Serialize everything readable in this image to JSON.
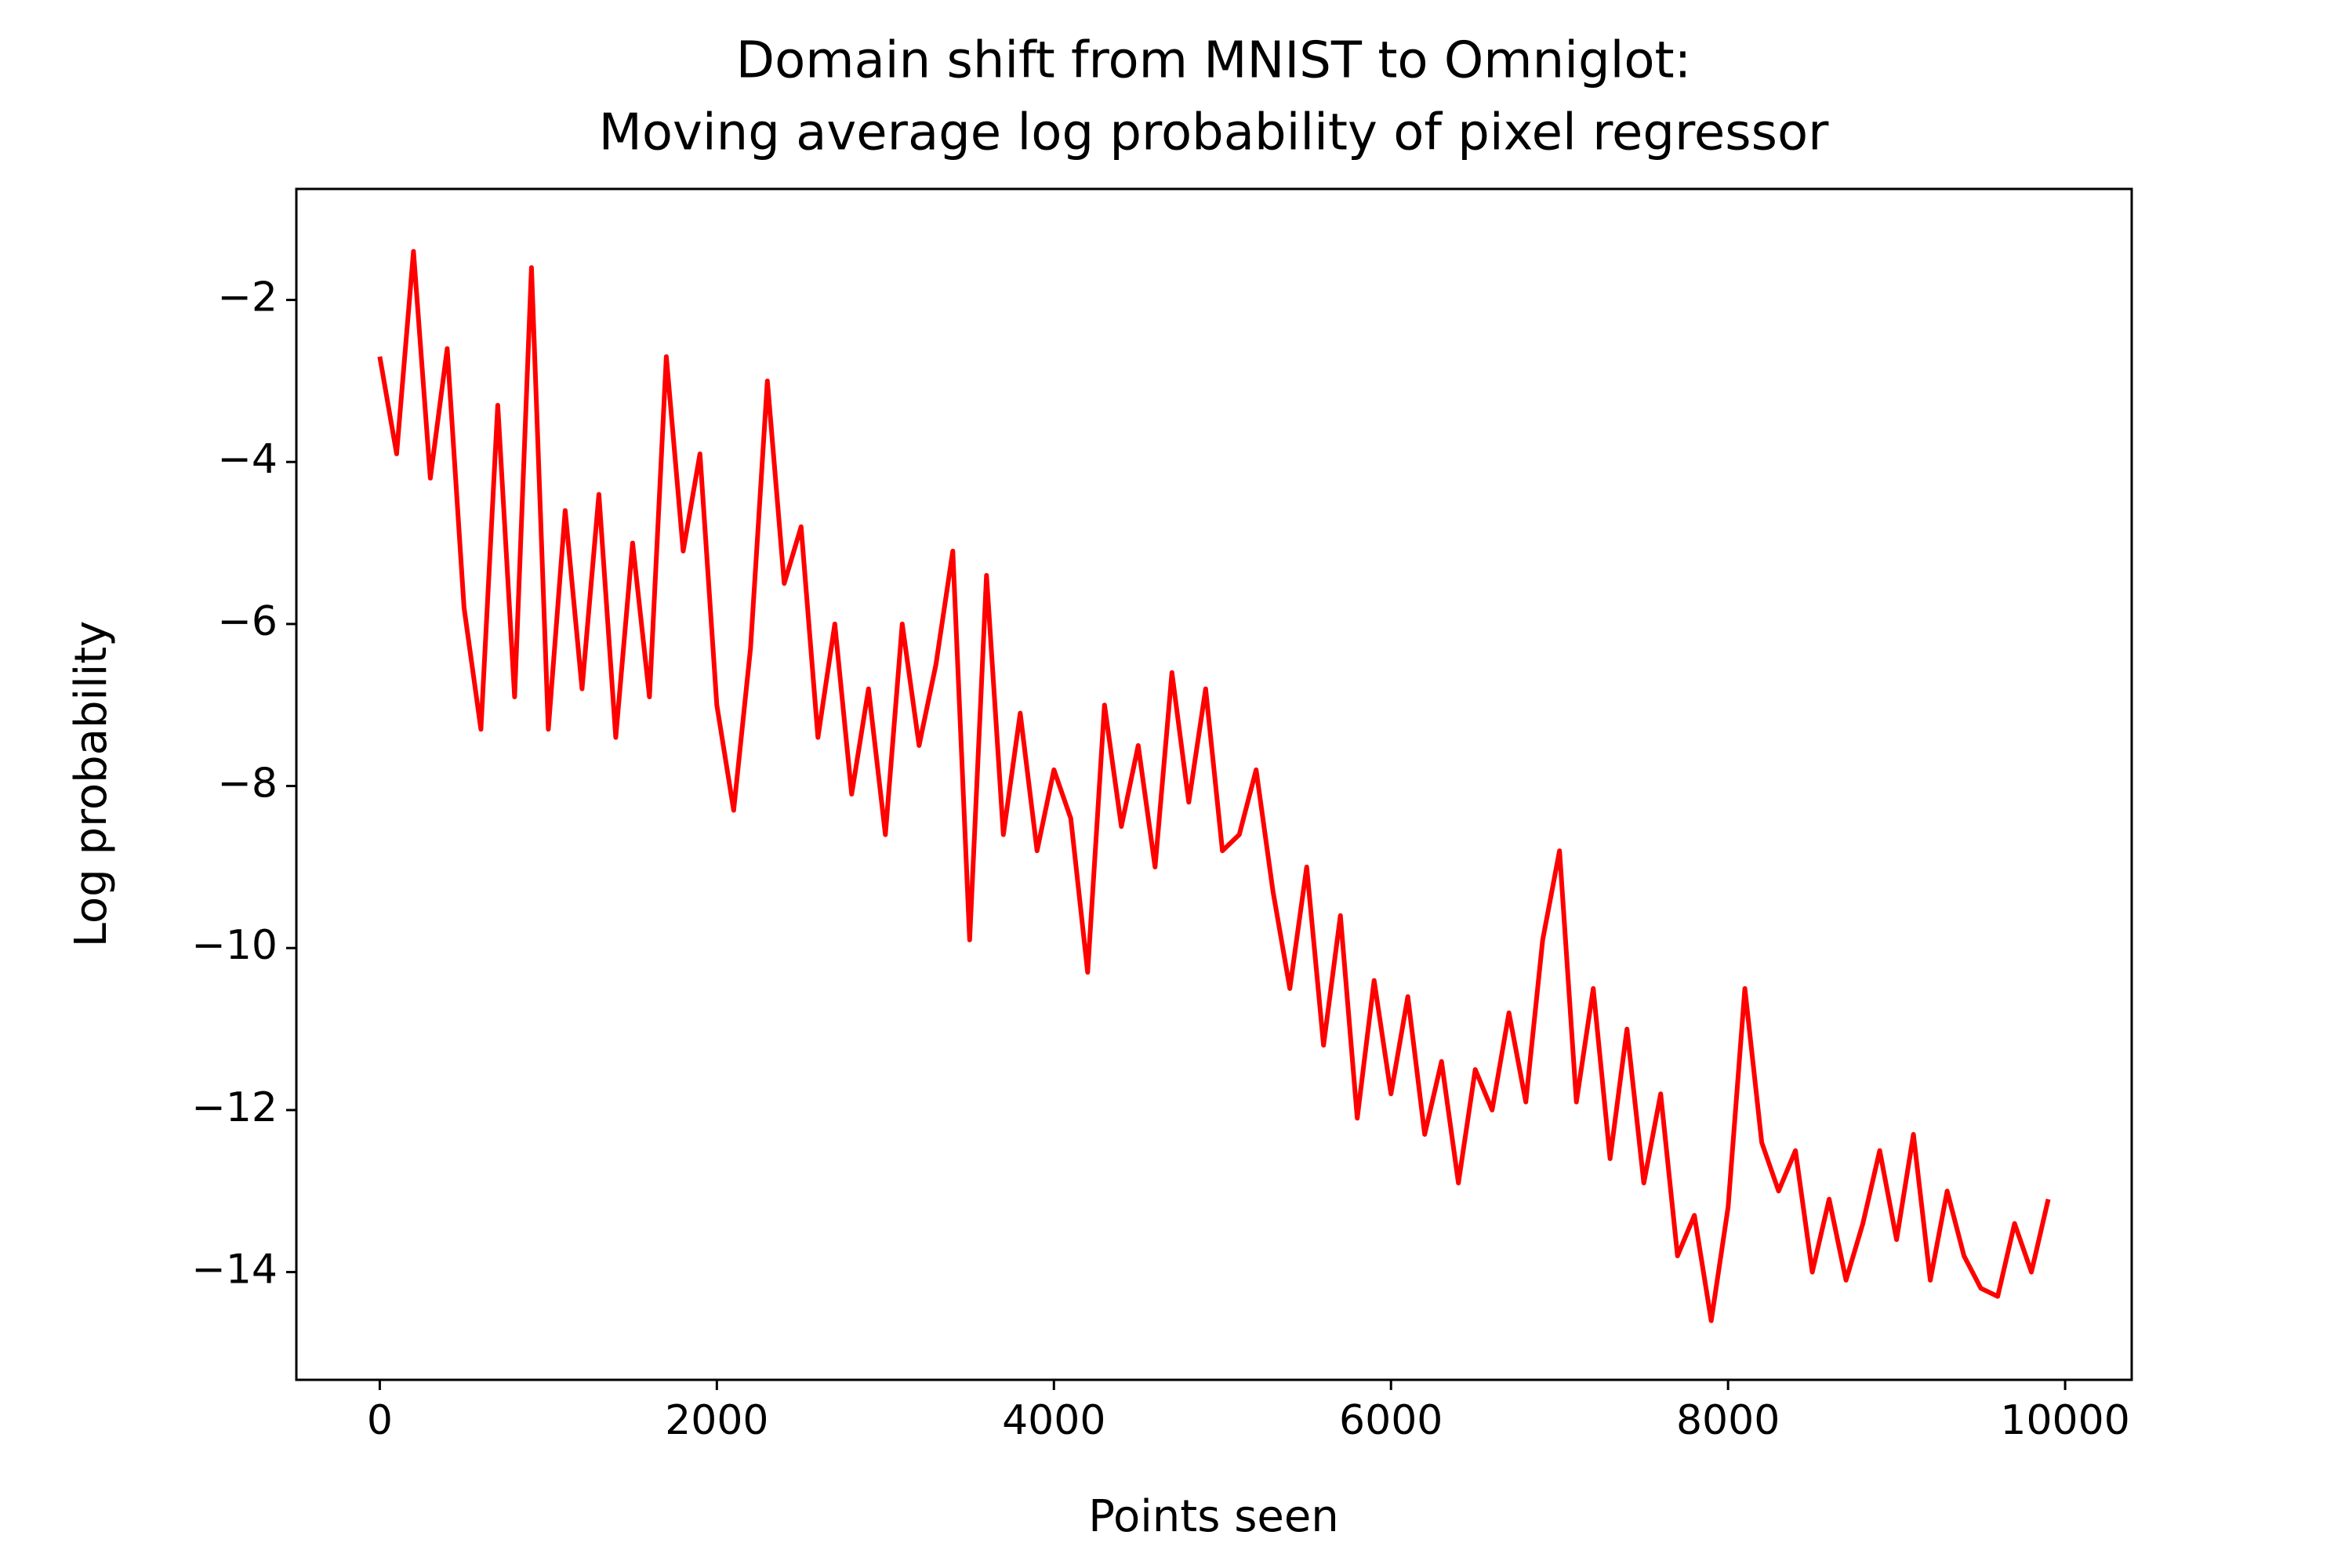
{
  "chart_data": {
    "type": "line",
    "title": [
      "Domain shift from MNIST to Omniglot:",
      "Moving average log probability of pixel regressor"
    ],
    "xlabel": "Points seen",
    "ylabel": "Log probability",
    "x": [
      0,
      100,
      200,
      300,
      400,
      500,
      600,
      700,
      800,
      900,
      1000,
      1100,
      1200,
      1300,
      1400,
      1500,
      1600,
      1700,
      1800,
      1900,
      2000,
      2100,
      2200,
      2300,
      2400,
      2500,
      2600,
      2700,
      2800,
      2900,
      3000,
      3100,
      3200,
      3300,
      3400,
      3500,
      3600,
      3700,
      3800,
      3900,
      4000,
      4100,
      4200,
      4300,
      4400,
      4500,
      4600,
      4700,
      4800,
      4900,
      5000,
      5100,
      5200,
      5300,
      5400,
      5500,
      5600,
      5700,
      5800,
      5900,
      6000,
      6100,
      6200,
      6300,
      6400,
      6500,
      6600,
      6700,
      6800,
      6900,
      7000,
      7100,
      7200,
      7300,
      7400,
      7500,
      7600,
      7700,
      7800,
      7900,
      8000,
      8100,
      8200,
      8300,
      8400,
      8500,
      8600,
      8700,
      8800,
      8900,
      9000,
      9100,
      9200,
      9300,
      9400,
      9500,
      9600,
      9700,
      9800,
      9900
    ],
    "values": [
      -2.7,
      -3.9,
      -1.4,
      -4.2,
      -2.6,
      -5.8,
      -7.3,
      -3.3,
      -6.9,
      -1.6,
      -7.3,
      -4.6,
      -6.8,
      -4.4,
      -7.4,
      -5.0,
      -6.9,
      -2.7,
      -5.1,
      -3.9,
      -7.0,
      -8.3,
      -6.3,
      -3.0,
      -5.5,
      -4.8,
      -7.4,
      -6.0,
      -8.1,
      -6.8,
      -8.6,
      -6.0,
      -7.5,
      -6.5,
      -5.1,
      -9.9,
      -5.4,
      -8.6,
      -7.1,
      -8.8,
      -7.8,
      -8.4,
      -10.3,
      -7.0,
      -8.5,
      -7.5,
      -9.0,
      -6.6,
      -8.2,
      -6.8,
      -8.8,
      -8.6,
      -7.8,
      -9.3,
      -10.5,
      -9.0,
      -11.2,
      -9.6,
      -12.1,
      -10.4,
      -11.8,
      -10.6,
      -12.3,
      -11.4,
      -12.9,
      -11.5,
      -12.0,
      -10.8,
      -11.9,
      -9.9,
      -8.8,
      -11.9,
      -10.5,
      -12.6,
      -11.0,
      -12.9,
      -11.8,
      -13.8,
      -13.3,
      -14.6,
      -13.2,
      -10.5,
      -12.4,
      -13.0,
      -12.5,
      -14.0,
      -13.1,
      -14.1,
      -13.4,
      -12.5,
      -13.6,
      -12.3,
      -14.1,
      -13.0,
      -13.8,
      -14.2,
      -14.3,
      -13.4,
      -14.0,
      -13.1
    ],
    "color": "#ff0000",
    "xlim": [
      -495,
      10395
    ],
    "ylim": [
      -15.33,
      -0.63
    ],
    "xticks": [
      0,
      2000,
      4000,
      6000,
      8000,
      10000
    ],
    "yticks": [
      {
        "value": -14,
        "label": "−14"
      },
      {
        "value": -12,
        "label": "−12"
      },
      {
        "value": -10,
        "label": "−10"
      },
      {
        "value": -8,
        "label": "−8"
      },
      {
        "value": -6,
        "label": "−6"
      },
      {
        "value": -4,
        "label": "−4"
      },
      {
        "value": -2,
        "label": "−2"
      }
    ],
    "grid": false
  }
}
